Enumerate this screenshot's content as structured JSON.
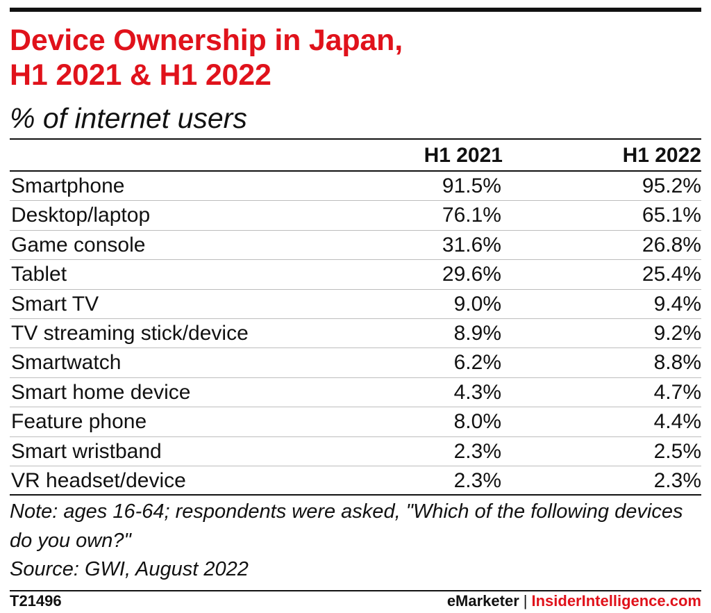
{
  "colors": {
    "title": "#e0121b",
    "text": "#111111",
    "rule": "#111111",
    "row_divider": "#bdbdbd",
    "brand_accent": "#e0121b"
  },
  "title_lines": [
    "Device Ownership in Japan,",
    "H1 2021 & H1 2022"
  ],
  "subtitle": "% of internet users",
  "chart_data": {
    "type": "table",
    "columns": [
      "",
      "H1 2021",
      "H1 2022"
    ],
    "rows": [
      {
        "label": "Smartphone",
        "values": [
          "91.5%",
          "95.2%"
        ]
      },
      {
        "label": "Desktop/laptop",
        "values": [
          "76.1%",
          "65.1%"
        ]
      },
      {
        "label": "Game console",
        "values": [
          "31.6%",
          "26.8%"
        ]
      },
      {
        "label": "Tablet",
        "values": [
          "29.6%",
          "25.4%"
        ]
      },
      {
        "label": "Smart TV",
        "values": [
          "9.0%",
          "9.4%"
        ]
      },
      {
        "label": "TV streaming stick/device",
        "values": [
          "8.9%",
          "9.2%"
        ]
      },
      {
        "label": "Smartwatch",
        "values": [
          "6.2%",
          "8.8%"
        ]
      },
      {
        "label": "Smart home device",
        "values": [
          "4.3%",
          "4.7%"
        ]
      },
      {
        "label": "Feature phone",
        "values": [
          "8.0%",
          "4.4%"
        ]
      },
      {
        "label": "Smart wristband",
        "values": [
          "2.3%",
          "2.5%"
        ]
      },
      {
        "label": "VR headset/device",
        "values": [
          "2.3%",
          "2.3%"
        ]
      }
    ]
  },
  "note": "Note: ages 16-64; respondents were asked, \"Which of the following devices do you own?\"",
  "source": "Source: GWI, August 2022",
  "footer": {
    "chart_id": "T21496",
    "brand_primary": "eMarketer",
    "brand_separator": "|",
    "brand_secondary": "InsiderIntelligence.com"
  }
}
